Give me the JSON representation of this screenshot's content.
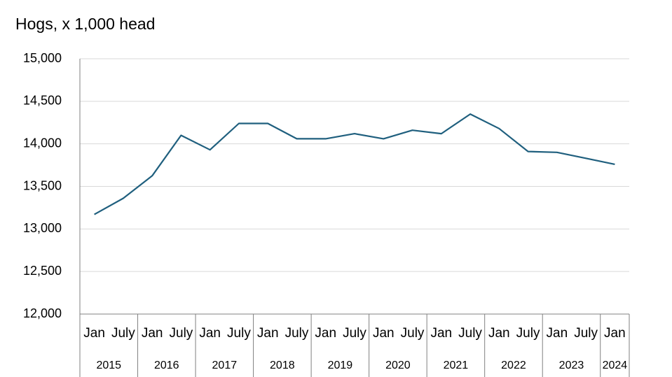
{
  "chart_data": {
    "type": "line",
    "title": "Hogs, x 1,000 head",
    "groups": [
      {
        "label": "2015",
        "categories": [
          "Jan",
          "July"
        ]
      },
      {
        "label": "2016",
        "categories": [
          "Jan",
          "July"
        ]
      },
      {
        "label": "2017",
        "categories": [
          "Jan",
          "July"
        ]
      },
      {
        "label": "2018",
        "categories": [
          "Jan",
          "July"
        ]
      },
      {
        "label": "2019",
        "categories": [
          "Jan",
          "July"
        ]
      },
      {
        "label": "2020",
        "categories": [
          "Jan",
          "July"
        ]
      },
      {
        "label": "2021",
        "categories": [
          "Jan",
          "July"
        ]
      },
      {
        "label": "2022",
        "categories": [
          "Jan",
          "July"
        ]
      },
      {
        "label": "2023",
        "categories": [
          "Jan",
          "July"
        ]
      },
      {
        "label": "2024",
        "categories": [
          "Jan"
        ]
      }
    ],
    "values": [
      13170,
      13360,
      13625,
      14100,
      13930,
      14240,
      14240,
      14060,
      14060,
      14120,
      14060,
      14160,
      14120,
      14350,
      14180,
      13910,
      13900,
      13830,
      13760
    ],
    "color": "#1f5f7e",
    "ylim": [
      12000,
      15000
    ],
    "yticks": [
      {
        "value": 12000,
        "label": "12,000"
      },
      {
        "value": 12500,
        "label": "12,500"
      },
      {
        "value": 13000,
        "label": "13,000"
      },
      {
        "value": 13500,
        "label": "13,500"
      },
      {
        "value": 14000,
        "label": "14,000"
      },
      {
        "value": 14500,
        "label": "14,500"
      },
      {
        "value": 15000,
        "label": "15,000"
      }
    ],
    "grid": true
  }
}
